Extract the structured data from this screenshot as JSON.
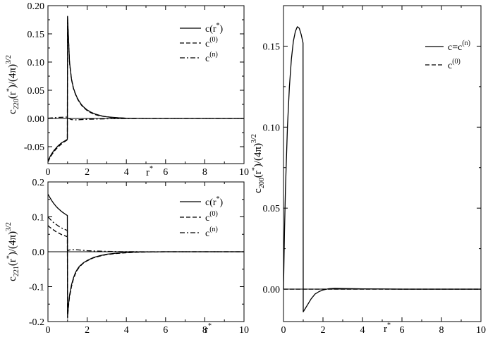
{
  "chart_data": [
    {
      "id": "c220",
      "type": "line",
      "xlabel": "r*",
      "ylabel": "c220(r*)/(4π)3/2",
      "xlim": [
        0,
        10
      ],
      "ylim": [
        -0.08,
        0.2
      ],
      "xticks": [
        0,
        2,
        4,
        6,
        8,
        10
      ],
      "yticks": [
        -0.05,
        0.0,
        0.05,
        0.1,
        0.15,
        0.2
      ],
      "ytick_labels": [
        "-0.05",
        "0.00",
        "0.05",
        "0.10",
        "0.15",
        "0.20"
      ],
      "legend": {
        "position": "top-right",
        "entries": [
          "c",
          "c(0)",
          "c(n)"
        ]
      },
      "series": [
        {
          "name": "c",
          "style": "solid",
          "x": [
            0,
            0.1,
            0.2,
            0.3,
            0.4,
            0.5,
            0.6,
            0.7,
            0.8,
            0.9,
            0.99,
            1.0,
            1.1,
            1.2,
            1.3,
            1.4,
            1.5,
            1.6,
            1.7,
            1.8,
            1.9,
            2.0,
            2.2,
            2.4,
            2.6,
            2.8,
            3.0,
            3.3,
            3.6,
            4.0,
            4.5,
            5.0,
            6.0,
            7.0,
            8.0,
            9.0,
            10.0
          ],
          "y": [
            -0.075,
            -0.068,
            -0.062,
            -0.057,
            -0.053,
            -0.049,
            -0.046,
            -0.043,
            -0.041,
            -0.039,
            -0.037,
            0.181,
            0.1,
            0.07,
            0.054,
            0.044,
            0.036,
            0.03,
            0.025,
            0.021,
            0.018,
            0.015,
            0.011,
            0.008,
            0.006,
            0.004,
            0.003,
            0.002,
            0.0012,
            0.0005,
            0.0002,
            0.0,
            0.0,
            0.0,
            0.0,
            0.0,
            0.0
          ]
        },
        {
          "name": "c(0)",
          "style": "dashed",
          "x": [
            0,
            0.1,
            0.2,
            0.3,
            0.4,
            0.5,
            0.6,
            0.7,
            0.8,
            0.9,
            0.99,
            1.0,
            1.1,
            1.2,
            1.3,
            1.4,
            1.5,
            1.6,
            1.7,
            1.8,
            1.9,
            2.0,
            2.2,
            2.4,
            2.6,
            2.8,
            3.0,
            3.3,
            3.6,
            4.0,
            4.5,
            5.0,
            6.0,
            7.0,
            8.0,
            9.0,
            10.0
          ],
          "y": [
            -0.077,
            -0.07,
            -0.064,
            -0.059,
            -0.055,
            -0.051,
            -0.048,
            -0.045,
            -0.042,
            -0.04,
            -0.038,
            0.18,
            0.099,
            0.069,
            0.053,
            0.043,
            0.035,
            0.029,
            0.024,
            0.02,
            0.017,
            0.014,
            0.01,
            0.007,
            0.005,
            0.004,
            0.003,
            0.0015,
            0.001,
            0.0005,
            0.0002,
            0.0,
            0.0,
            0.0,
            0.0,
            0.0,
            0.0
          ]
        },
        {
          "name": "c(n)",
          "style": "dashdot",
          "x": [
            0,
            0.2,
            0.4,
            0.6,
            0.8,
            0.99,
            1.0,
            1.2,
            1.4,
            1.6,
            1.8,
            2.0,
            2.5,
            3.0,
            3.5,
            4.0,
            5.0,
            6.0,
            8.0,
            10.0
          ],
          "y": [
            0.0005,
            0.001,
            0.0015,
            0.002,
            0.0022,
            0.0025,
            0.001,
            -0.002,
            -0.0025,
            -0.0022,
            -0.0018,
            -0.0015,
            -0.001,
            -0.0006,
            -0.0003,
            -0.0001,
            0.0,
            0.0,
            0.0,
            0.0
          ]
        }
      ]
    },
    {
      "id": "c221",
      "type": "line",
      "xlabel": "r*",
      "ylabel": "c221(r*)/(4π)3/2",
      "xlim": [
        0,
        10
      ],
      "ylim": [
        -0.2,
        0.2
      ],
      "xticks": [
        0,
        2,
        4,
        6,
        8,
        10
      ],
      "yticks": [
        -0.2,
        -0.1,
        0.0,
        0.1,
        0.2
      ],
      "ytick_labels": [
        "-0.2",
        "-0.1",
        "0.0",
        "0.1",
        "0.2"
      ],
      "legend": {
        "position": "top-right",
        "entries": [
          "c",
          "c(0)",
          "c(n)"
        ]
      },
      "series": [
        {
          "name": "c",
          "style": "solid",
          "x": [
            0,
            0.1,
            0.2,
            0.3,
            0.4,
            0.5,
            0.6,
            0.7,
            0.8,
            0.9,
            0.99,
            1.0,
            1.05,
            1.1,
            1.2,
            1.3,
            1.4,
            1.5,
            1.6,
            1.8,
            2.0,
            2.3,
            2.6,
            3.0,
            3.5,
            4.0,
            4.5,
            5.0,
            6.0,
            8.0,
            10.0
          ],
          "y": [
            0.165,
            0.155,
            0.146,
            0.138,
            0.131,
            0.125,
            0.12,
            0.115,
            0.111,
            0.107,
            0.104,
            -0.185,
            -0.15,
            -0.125,
            -0.095,
            -0.075,
            -0.06,
            -0.05,
            -0.042,
            -0.032,
            -0.025,
            -0.017,
            -0.012,
            -0.007,
            -0.004,
            -0.002,
            -0.001,
            -0.0005,
            0.0,
            0.0,
            0.0
          ]
        },
        {
          "name": "c(0)",
          "style": "dashed",
          "x": [
            0,
            0.1,
            0.2,
            0.3,
            0.4,
            0.5,
            0.6,
            0.7,
            0.8,
            0.9,
            0.99,
            1.0,
            1.05,
            1.1,
            1.2,
            1.3,
            1.4,
            1.5,
            1.6,
            1.8,
            2.0,
            2.3,
            2.6,
            3.0,
            3.5,
            4.0,
            4.5,
            5.0,
            6.0,
            8.0,
            10.0
          ],
          "y": [
            0.075,
            0.07,
            0.066,
            0.062,
            0.058,
            0.055,
            0.052,
            0.049,
            0.047,
            0.045,
            0.043,
            -0.19,
            -0.155,
            -0.13,
            -0.1,
            -0.078,
            -0.063,
            -0.052,
            -0.044,
            -0.033,
            -0.026,
            -0.018,
            -0.013,
            -0.008,
            -0.005,
            -0.003,
            -0.0015,
            -0.0008,
            0.0,
            0.0,
            0.0
          ]
        },
        {
          "name": "c(n)",
          "style": "dashdot",
          "x": [
            0,
            0.1,
            0.2,
            0.3,
            0.4,
            0.5,
            0.6,
            0.7,
            0.8,
            0.9,
            0.99,
            1.0,
            1.1,
            1.2,
            1.4,
            1.6,
            1.8,
            2.0,
            2.5,
            3.0,
            3.5,
            4.0,
            5.0,
            6.0,
            8.0,
            10.0
          ],
          "y": [
            0.1,
            0.094,
            0.088,
            0.083,
            0.079,
            0.075,
            0.071,
            0.068,
            0.065,
            0.063,
            0.061,
            0.003,
            0.005,
            0.006,
            0.006,
            0.005,
            0.004,
            0.003,
            0.002,
            0.001,
            0.0005,
            0.0002,
            0.0,
            0.0,
            0.0,
            0.0
          ]
        }
      ]
    },
    {
      "id": "c200",
      "type": "line",
      "xlabel": "r*",
      "ylabel": "c200(r*)/(4π)3/2",
      "xlim": [
        0,
        10
      ],
      "ylim": [
        -0.02,
        0.175
      ],
      "xticks": [
        0,
        2,
        4,
        6,
        8,
        10
      ],
      "yticks": [
        0.0,
        0.05,
        0.1,
        0.15
      ],
      "ytick_labels": [
        "0.00",
        "0.05",
        "0.10",
        "0.15"
      ],
      "legend": {
        "position": "top-right",
        "entries": [
          "c=c(n)",
          "c(0)"
        ]
      },
      "series": [
        {
          "name": "c=c(n)",
          "style": "solid",
          "x": [
            0,
            0.05,
            0.1,
            0.2,
            0.3,
            0.4,
            0.5,
            0.6,
            0.7,
            0.8,
            0.9,
            0.99,
            1.0,
            1.1,
            1.2,
            1.3,
            1.4,
            1.5,
            1.6,
            1.8,
            2.0,
            2.3,
            2.6,
            3.0,
            4.0,
            5.0,
            6.0,
            8.0,
            10.0
          ],
          "y": [
            0.0,
            0.035,
            0.062,
            0.1,
            0.125,
            0.142,
            0.153,
            0.159,
            0.162,
            0.161,
            0.157,
            0.152,
            -0.014,
            -0.012,
            -0.01,
            -0.008,
            -0.006,
            -0.0045,
            -0.003,
            -0.0015,
            -0.0005,
            0.0003,
            0.0005,
            0.0004,
            0.0002,
            0.0001,
            0.0,
            0.0,
            0.0
          ]
        },
        {
          "name": "c(0)",
          "style": "dashed",
          "x": [
            0,
            10
          ],
          "y": [
            0.0,
            0.0
          ]
        }
      ]
    }
  ]
}
